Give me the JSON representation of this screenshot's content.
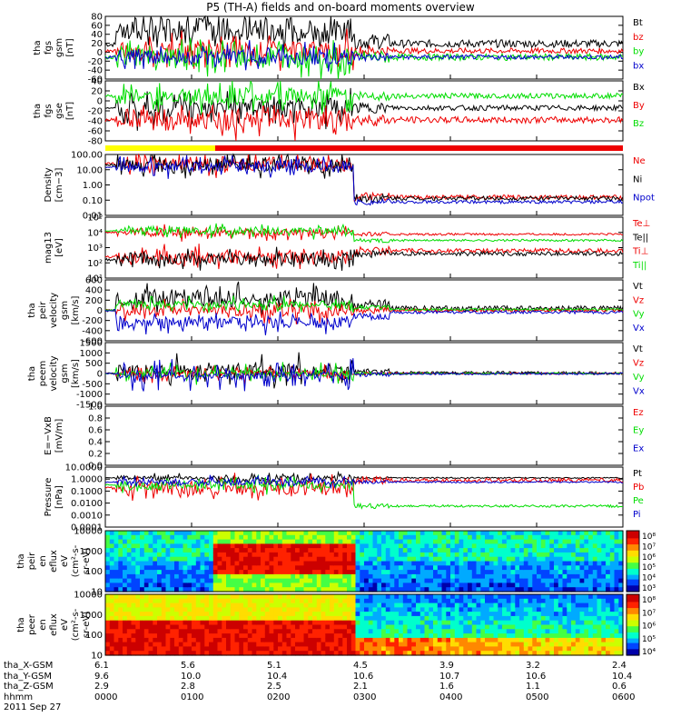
{
  "title": "P5 (TH-A) fields and on-board moments overview",
  "date_label": "2011 Sep 27",
  "colors": {
    "black": "#000000",
    "red": "#ee0000",
    "green": "#00dd00",
    "blue": "#0000cc",
    "yellow": "#ffff00"
  },
  "chart_data": [
    {
      "id": "fgs1",
      "type": "line",
      "ylabel": [
        "tha",
        "fgs",
        "gsm",
        "[nT]"
      ],
      "ylim": [
        -60,
        80
      ],
      "yticks": [
        "80",
        "60",
        "40",
        "20",
        "0",
        "-20",
        "-40",
        "-60"
      ],
      "series": [
        {
          "name": "Bt",
          "color": "black"
        },
        {
          "name": "bz",
          "color": "red"
        },
        {
          "name": "by",
          "color": "green"
        },
        {
          "name": "bx",
          "color": "blue"
        }
      ]
    },
    {
      "id": "fgs2",
      "type": "line",
      "ylabel": [
        "tha",
        "fgs",
        "gse",
        "[nT]"
      ],
      "ylim": [
        -80,
        40
      ],
      "yticks": [
        "40",
        "20",
        "0",
        "-20",
        "-40",
        "-60",
        "-80"
      ],
      "series": [
        {
          "name": "Bx",
          "color": "black"
        },
        {
          "name": "By",
          "color": "red"
        },
        {
          "name": "Bz",
          "color": "green"
        }
      ]
    },
    {
      "id": "dens",
      "type": "line",
      "ylabel": [
        "Density",
        "[cm−3]"
      ],
      "ylim": [
        0.01,
        100
      ],
      "log": true,
      "yticks": [
        "100.00",
        "10.00",
        "1.00",
        "0.10",
        "0.01"
      ],
      "series": [
        {
          "name": "Ne",
          "color": "red"
        },
        {
          "name": "Ni",
          "color": "black"
        },
        {
          "name": "Npot",
          "color": "blue"
        }
      ]
    },
    {
      "id": "temp",
      "type": "line",
      "ylabel": [
        "mag13",
        "[eV]"
      ],
      "ylim": [
        10,
        100000
      ],
      "log": true,
      "yticks": [
        "10⁵",
        "10⁴",
        "10³",
        "10²",
        "10¹"
      ],
      "series": [
        {
          "name": "Te⊥",
          "color": "red"
        },
        {
          "name": "Te||",
          "color": "black"
        },
        {
          "name": "Ti⊥",
          "color": "red"
        },
        {
          "name": "Ti||",
          "color": "green"
        }
      ]
    },
    {
      "id": "peir",
      "type": "line",
      "ylabel": [
        "tha",
        "peir",
        "velocity",
        "gsm",
        "[km/s]"
      ],
      "ylim": [
        -600,
        600
      ],
      "yticks": [
        "600",
        "400",
        "200",
        "0",
        "-200",
        "-400",
        "-600"
      ],
      "series": [
        {
          "name": "Vt",
          "color": "black"
        },
        {
          "name": "Vz",
          "color": "red"
        },
        {
          "name": "Vy",
          "color": "green"
        },
        {
          "name": "Vx",
          "color": "blue"
        }
      ]
    },
    {
      "id": "peem",
      "type": "line",
      "ylabel": [
        "tha",
        "peem",
        "velocity",
        "gsm",
        "[km/s]"
      ],
      "ylim": [
        -1500,
        1500
      ],
      "yticks": [
        "1500",
        "1000",
        "500",
        "0",
        "-500",
        "-1000",
        "-1500"
      ],
      "series": [
        {
          "name": "Vt",
          "color": "black"
        },
        {
          "name": "Vz",
          "color": "red"
        },
        {
          "name": "Vy",
          "color": "green"
        },
        {
          "name": "Vx",
          "color": "blue"
        }
      ]
    },
    {
      "id": "efield",
      "type": "line",
      "ylabel": [
        "E=−VxB",
        "[mV/m]"
      ],
      "ylim": [
        0,
        1
      ],
      "yticks": [
        "1.0",
        "0.8",
        "0.6",
        "0.4",
        "0.2",
        "0.0"
      ],
      "series": [
        {
          "name": "Ez",
          "color": "red"
        },
        {
          "name": "Ey",
          "color": "green"
        },
        {
          "name": "Ex",
          "color": "blue"
        }
      ]
    },
    {
      "id": "pres",
      "type": "line",
      "ylabel": [
        "Pressure",
        "[nPa]"
      ],
      "ylim": [
        0.0001,
        10
      ],
      "log": true,
      "yticks": [
        "10.0000",
        "1.0000",
        "0.1000",
        "0.0100",
        "0.0010",
        "0.0001"
      ],
      "series": [
        {
          "name": "Pt",
          "color": "black"
        },
        {
          "name": "Pb",
          "color": "red"
        },
        {
          "name": "Pe",
          "color": "green"
        },
        {
          "name": "Pi",
          "color": "blue"
        }
      ]
    },
    {
      "id": "peir_spec",
      "type": "heatmap",
      "ylabel": [
        "tha",
        "peir",
        "en",
        "eflux",
        "eV",
        "(cm²-s-",
        "sr-eV)"
      ],
      "ylim": [
        10,
        10000
      ],
      "log": true,
      "yticks": [
        "10000",
        "1000",
        "100",
        "10"
      ],
      "colorbar": {
        "ticks": [
          "10⁸",
          "10⁷",
          "10⁶",
          "10⁵",
          "10⁴",
          "10³"
        ]
      }
    },
    {
      "id": "peer_spec",
      "type": "heatmap",
      "ylabel": [
        "tha",
        "peer",
        "en",
        "eflux",
        "eV",
        "(cm²-s-",
        "sr-eV)"
      ],
      "ylim": [
        10,
        10000
      ],
      "log": true,
      "yticks": [
        "10000",
        "1000",
        "100",
        "10"
      ],
      "colorbar": {
        "ticks": [
          "10⁸",
          "10⁷",
          "10⁶",
          "10⁵",
          "10⁴"
        ]
      }
    }
  ],
  "x_axis": {
    "rows": [
      {
        "label": "tha_X-GSM",
        "values": [
          "6.1",
          "5.6",
          "5.1",
          "4.5",
          "3.9",
          "3.2",
          "2.4"
        ]
      },
      {
        "label": "tha_Y-GSM",
        "values": [
          "9.6",
          "10.0",
          "10.4",
          "10.6",
          "10.7",
          "10.6",
          "10.4"
        ]
      },
      {
        "label": "tha_Z-GSM",
        "values": [
          "2.9",
          "2.8",
          "2.5",
          "2.1",
          "1.6",
          "1.1",
          "0.6"
        ]
      },
      {
        "label": "hhmm",
        "values": [
          "0000",
          "0100",
          "0200",
          "0300",
          "0400",
          "0500",
          "0600"
        ]
      }
    ]
  }
}
